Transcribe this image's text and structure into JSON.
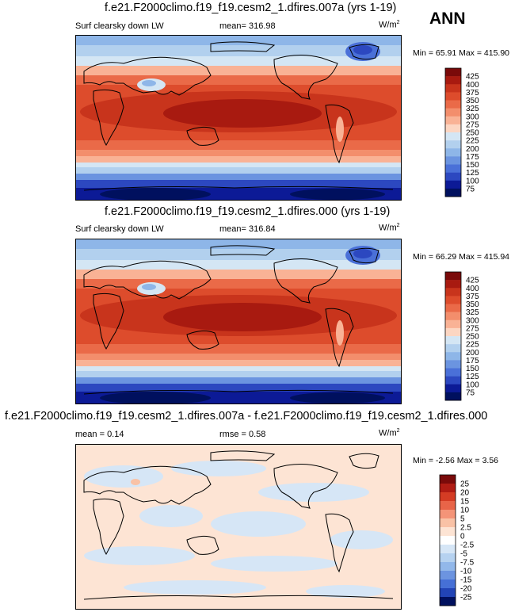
{
  "season": "ANN",
  "colors": {
    "ocean_warm": "#c8401e",
    "land_line": "#000000"
  },
  "chart_data": [
    {
      "type": "heatmap",
      "title": "f.e21.F2000climo.f19_f19.cesm2_1.dfires.007a (yrs 1-19)",
      "variable": "Surf clearsky down LW",
      "mean_label": "mean=",
      "mean": "316.98",
      "units": "W/m",
      "units_exp": "2",
      "min_label": "Min =",
      "min": "65.91",
      "max_label": "Max =",
      "max": "415.90",
      "levels": [
        "425",
        "400",
        "375",
        "350",
        "325",
        "300",
        "275",
        "250",
        "225",
        "200",
        "175",
        "150",
        "125",
        "100",
        "75"
      ],
      "colors": [
        "#7a0a0a",
        "#a81a10",
        "#c8341c",
        "#dd4c2c",
        "#ea6a48",
        "#f38e6c",
        "#f9b295",
        "#fcd6c2",
        "#d4e6f4",
        "#b2d0ee",
        "#8eb6e8",
        "#6b94e0",
        "#4a70d8",
        "#2c48c0",
        "#0c1a96",
        "#00105e"
      ]
    },
    {
      "type": "heatmap",
      "title": "f.e21.F2000climo.f19_f19.cesm2_1.dfires.000 (yrs 1-19)",
      "variable": "Surf clearsky down LW",
      "mean_label": "mean=",
      "mean": "316.84",
      "units": "W/m",
      "units_exp": "2",
      "min_label": "Min =",
      "min": "66.29",
      "max_label": "Max =",
      "max": "415.94",
      "levels": [
        "425",
        "400",
        "375",
        "350",
        "325",
        "300",
        "275",
        "250",
        "225",
        "200",
        "175",
        "150",
        "125",
        "100",
        "75"
      ],
      "colors": [
        "#7a0a0a",
        "#a81a10",
        "#c8341c",
        "#dd4c2c",
        "#ea6a48",
        "#f38e6c",
        "#f9b295",
        "#fcd6c2",
        "#d4e6f4",
        "#b2d0ee",
        "#8eb6e8",
        "#6b94e0",
        "#4a70d8",
        "#2c48c0",
        "#0c1a96",
        "#00105e"
      ]
    },
    {
      "type": "heatmap",
      "title": "f.e21.F2000climo.f19_f19.cesm2_1.dfires.007a - f.e21.F2000climo.f19_f19.cesm2_1.dfires.000",
      "mean_label": "mean =",
      "mean": "0.14",
      "rmse_label": "rmse =",
      "rmse": "0.58",
      "units": "W/m",
      "units_exp": "2",
      "min_label": "Min =",
      "min": "-2.56",
      "max_label": "Max =",
      "max": "3.56",
      "levels": [
        "25",
        "20",
        "15",
        "10",
        "5",
        "2.5",
        "0",
        "-2.5",
        "-5",
        "-7.5",
        "-10",
        "-15",
        "-20",
        "-25"
      ],
      "colors": [
        "#7a0a0a",
        "#b01c14",
        "#d43c24",
        "#e86448",
        "#f49478",
        "#f9c2a6",
        "#fde4d4",
        "#ffffff",
        "#d6e6f6",
        "#b6d2f0",
        "#92b8ea",
        "#6c94e0",
        "#4670d6",
        "#2244b6",
        "#00105e"
      ]
    }
  ]
}
